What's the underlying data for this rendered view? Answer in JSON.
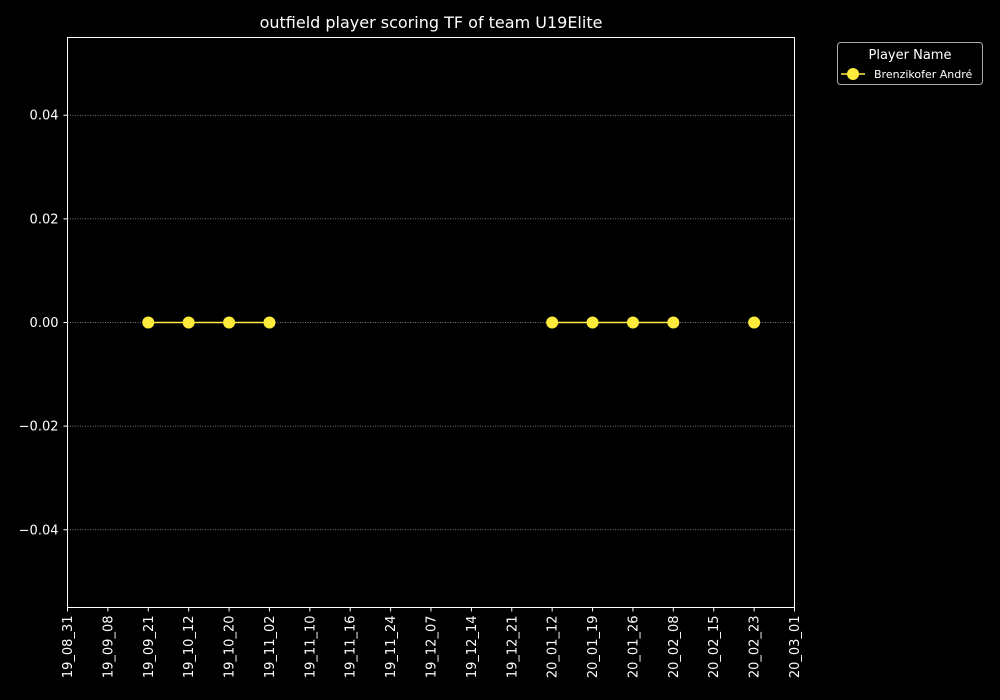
{
  "chart_data": {
    "type": "line",
    "title": "outfield player scoring TF of team U19Elite",
    "xlabel": "",
    "ylabel": "",
    "categories": [
      "19_08_31",
      "19_09_08",
      "19_09_21",
      "19_10_12",
      "19_10_20",
      "19_11_02",
      "19_11_10",
      "19_11_16",
      "19_11_24",
      "19_12_07",
      "19_12_14",
      "19_12_21",
      "20_01_12",
      "20_01_19",
      "20_01_26",
      "20_02_08",
      "20_02_15",
      "20_02_23",
      "20_03_01"
    ],
    "series": [
      {
        "name": "Brenzikofer André",
        "color": "#ffeb3b",
        "values": [
          null,
          null,
          0,
          0,
          0,
          0,
          null,
          null,
          null,
          null,
          null,
          null,
          0,
          0,
          0,
          0,
          null,
          0,
          null
        ]
      }
    ],
    "ylim": [
      -0.055,
      0.055
    ],
    "yticks": [
      -0.04,
      -0.02,
      0.0,
      0.02,
      0.04
    ],
    "ytick_labels": [
      "−0.04",
      "−0.02",
      "0.00",
      "0.02",
      "0.04"
    ],
    "grid": "horizontal dotted",
    "legend": {
      "title": "Player Name",
      "placement": "outside top-right"
    }
  }
}
